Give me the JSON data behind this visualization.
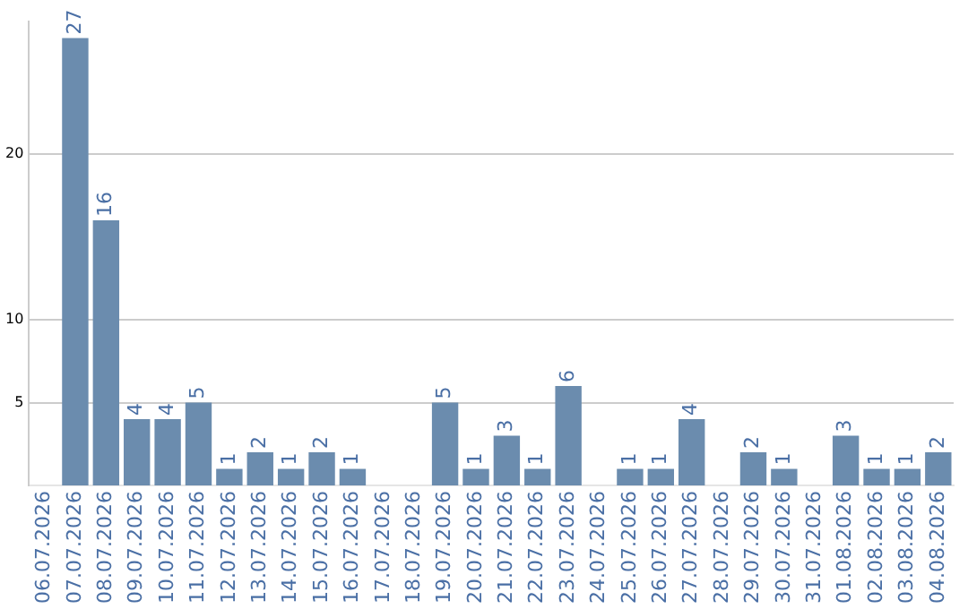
{
  "chart_data": {
    "type": "bar",
    "categories": [
      "06.07.2026",
      "07.07.2026",
      "08.07.2026",
      "09.07.2026",
      "10.07.2026",
      "11.07.2026",
      "12.07.2026",
      "13.07.2026",
      "14.07.2026",
      "15.07.2026",
      "16.07.2026",
      "17.07.2026",
      "18.07.2026",
      "19.07.2026",
      "20.07.2026",
      "21.07.2026",
      "22.07.2026",
      "23.07.2026",
      "24.07.2026",
      "25.07.2026",
      "26.07.2026",
      "27.07.2026",
      "28.07.2026",
      "29.07.2026",
      "30.07.2026",
      "31.07.2026",
      "01.08.2026",
      "02.08.2026",
      "03.08.2026",
      "04.08.2026"
    ],
    "values": [
      null,
      27,
      16,
      4,
      4,
      5,
      1,
      2,
      1,
      2,
      1,
      null,
      null,
      5,
      1,
      3,
      1,
      6,
      null,
      1,
      1,
      4,
      null,
      2,
      1,
      null,
      3,
      1,
      1,
      2
    ],
    "color": "#6b8cae",
    "ylim": [
      0,
      28
    ],
    "yticks": [
      5,
      10,
      20
    ],
    "grid": "y",
    "data_labels": true
  }
}
